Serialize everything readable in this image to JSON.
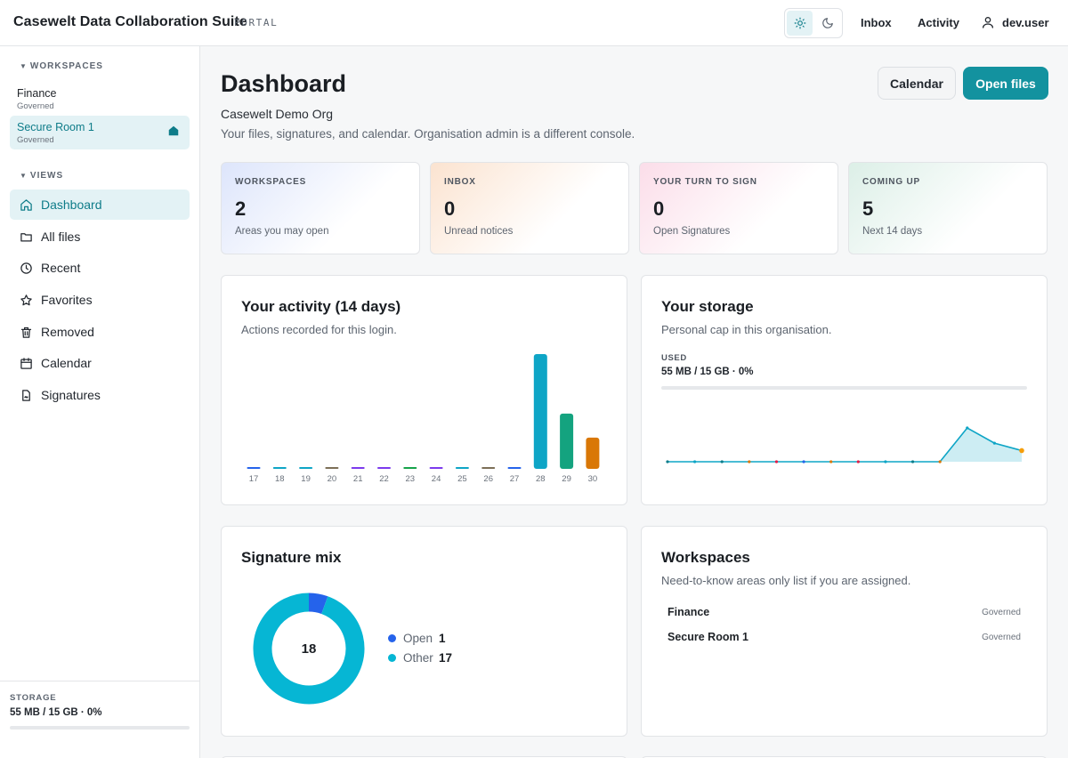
{
  "app": {
    "title": "Casewelt Data Collaboration Suite",
    "subtitle": "PORTAL"
  },
  "topnav": {
    "inbox": "Inbox",
    "activity": "Activity",
    "user": "dev.user"
  },
  "sidebar": {
    "workspaces_heading": "WORKSPACES",
    "workspaces": [
      {
        "name": "Finance",
        "status": "Governed",
        "active": false
      },
      {
        "name": "Secure Room 1",
        "status": "Governed",
        "active": true
      }
    ],
    "views_heading": "VIEWS",
    "views": [
      {
        "label": "Dashboard",
        "icon": "home-icon",
        "active": true
      },
      {
        "label": "All files",
        "icon": "folder-icon"
      },
      {
        "label": "Recent",
        "icon": "clock-icon"
      },
      {
        "label": "Favorites",
        "icon": "star-icon"
      },
      {
        "label": "Removed",
        "icon": "trash-icon"
      },
      {
        "label": "Calendar",
        "icon": "calendar-icon"
      },
      {
        "label": "Signatures",
        "icon": "document-icon"
      }
    ],
    "storage": {
      "label": "STORAGE",
      "value": "55 MB / 15 GB · 0%",
      "fraction": 0
    }
  },
  "header": {
    "title": "Dashboard",
    "org": "Casewelt Demo Org",
    "description": "Your files, signatures, and calendar. Organisation admin is a different console.",
    "calendar_button": "Calendar",
    "open_files_button": "Open files"
  },
  "stats": [
    {
      "label": "WORKSPACES",
      "value": "2",
      "sub": "Areas you may open"
    },
    {
      "label": "INBOX",
      "value": "0",
      "sub": "Unread notices"
    },
    {
      "label": "YOUR TURN TO SIGN",
      "value": "0",
      "sub": "Open Signatures"
    },
    {
      "label": "COMING UP",
      "value": "5",
      "sub": "Next 14 days"
    }
  ],
  "activity": {
    "title": "Your activity (14 days)",
    "subtitle": "Actions recorded for this login."
  },
  "storage_card": {
    "title": "Your storage",
    "subtitle": "Personal cap in this organisation.",
    "used_label": "USED",
    "used_value": "55 MB / 15 GB · 0%"
  },
  "signature_mix": {
    "title": "Signature mix",
    "total": "18",
    "legend": [
      {
        "name": "Open",
        "value": "1"
      },
      {
        "name": "Other",
        "value": "17"
      }
    ]
  },
  "workspaces_card": {
    "title": "Workspaces",
    "subtitle": "Need-to-know areas only list if you are assigned.",
    "rows": [
      {
        "name": "Finance",
        "status": "Governed"
      },
      {
        "name": "Secure Room 1",
        "status": "Governed"
      }
    ]
  },
  "chart_data": [
    {
      "type": "bar",
      "categories": [
        "17",
        "18",
        "19",
        "20",
        "21",
        "22",
        "23",
        "24",
        "25",
        "26",
        "27",
        "28",
        "29",
        "30"
      ],
      "values": [
        0,
        0,
        0,
        0,
        0,
        0,
        0,
        0,
        0,
        0,
        0,
        11,
        5.3,
        3
      ],
      "bar_colors": [
        "#2563eb",
        "#0ea5c6",
        "#0ea5c6",
        "#7c6f57",
        "#7c3aed",
        "#7c3aed",
        "#16a34a",
        "#7c3aed",
        "#0ea5c6",
        "#7c6f57",
        "#2563eb",
        "#0ea5c6",
        "#14a37f",
        "#d97706"
      ],
      "ylim": [
        0,
        11
      ]
    },
    {
      "type": "area",
      "x": [
        1,
        2,
        3,
        4,
        5,
        6,
        7,
        8,
        9,
        10,
        11,
        12,
        13,
        14
      ],
      "values": [
        0,
        0,
        0,
        0,
        0,
        0,
        0,
        0,
        0,
        0,
        0,
        1,
        0.55,
        0.33
      ],
      "point_colors": [
        "#0e7c89",
        "#0ea5c6",
        "#0e7c89",
        "#d97706",
        "#e11d48",
        "#2563eb",
        "#d97706",
        "#e11d48",
        "#0ea5c6",
        "#0e7c89",
        "#d97706",
        "#0ea5c6",
        "#0ea5c6",
        "#f59e0b"
      ],
      "ylim": [
        0,
        1
      ]
    },
    {
      "type": "pie",
      "categories": [
        "Open",
        "Other"
      ],
      "values": [
        1,
        17
      ],
      "colors": [
        "#2563eb",
        "#06b6d4"
      ]
    }
  ]
}
